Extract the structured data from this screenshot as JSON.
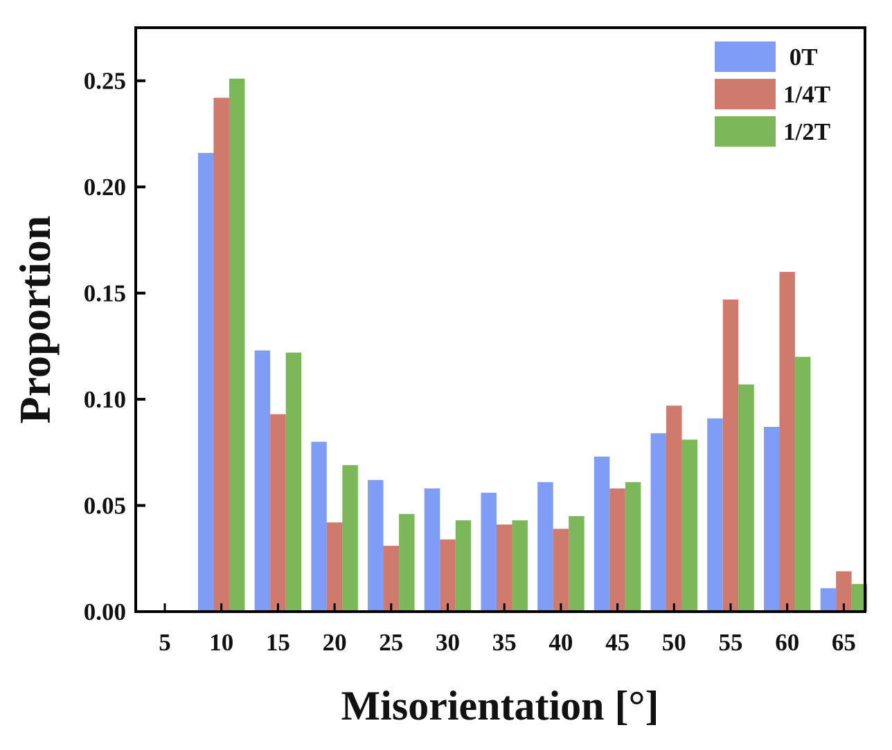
{
  "chart_data": {
    "type": "bar",
    "title": "",
    "xlabel": "Misorientation [°]",
    "ylabel": "Proportion",
    "categories": [
      "5",
      "10",
      "15",
      "20",
      "25",
      "30",
      "35",
      "40",
      "45",
      "50",
      "55",
      "60",
      "65"
    ],
    "ylim": [
      0,
      0.275
    ],
    "yticks": [
      "0.00",
      "0.05",
      "0.10",
      "0.15",
      "0.20",
      "0.25"
    ],
    "grid": false,
    "legend_position": "top-right",
    "series": [
      {
        "name": "0T",
        "color": "#7f9df5",
        "values": [
          0,
          0.216,
          0.123,
          0.08,
          0.062,
          0.058,
          0.056,
          0.061,
          0.073,
          0.084,
          0.091,
          0.087,
          0.011
        ]
      },
      {
        "name": "1/4T",
        "color": "#d07a6e",
        "values": [
          0,
          0.242,
          0.093,
          0.042,
          0.031,
          0.034,
          0.041,
          0.039,
          0.058,
          0.097,
          0.147,
          0.16,
          0.019
        ]
      },
      {
        "name": "1/2T",
        "color": "#7cb85a",
        "values": [
          0,
          0.251,
          0.122,
          0.069,
          0.046,
          0.043,
          0.043,
          0.045,
          0.061,
          0.081,
          0.107,
          0.12,
          0.013
        ]
      }
    ]
  }
}
